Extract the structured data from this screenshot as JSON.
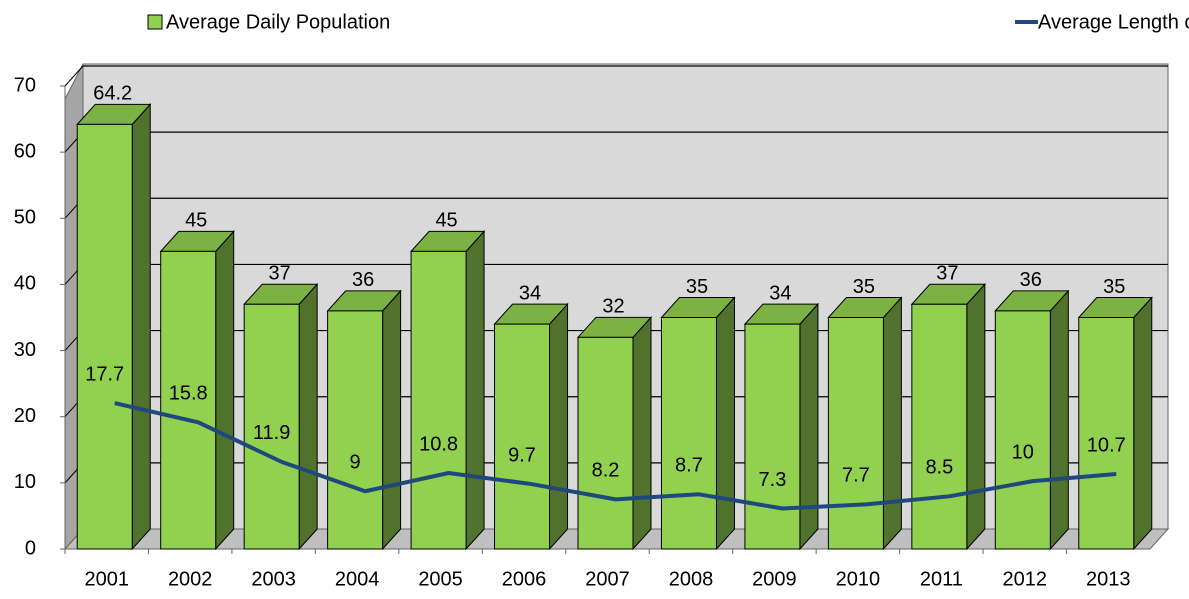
{
  "chart_data": {
    "type": "bar",
    "categories": [
      "2001",
      "2002",
      "2003",
      "2004",
      "2005",
      "2006",
      "2007",
      "2008",
      "2009",
      "2010",
      "2011",
      "2012",
      "2013"
    ],
    "series": [
      {
        "name": "Average Daily Population",
        "type": "bar",
        "color": "#92d050",
        "values": [
          64.2,
          45,
          37,
          36,
          45,
          34,
          32,
          35,
          34,
          35,
          37,
          36,
          35
        ]
      },
      {
        "name": "Average Length of Stay",
        "type": "line",
        "color": "#1f497d",
        "axis": "y2",
        "values": [
          17.7,
          15.8,
          11.9,
          9,
          10.8,
          9.7,
          8.2,
          8.7,
          7.3,
          7.7,
          8.5,
          10,
          10.7
        ]
      }
    ],
    "ylim": [
      0,
      70
    ],
    "yticks": [
      0,
      10,
      20,
      30,
      40,
      50,
      60,
      70
    ],
    "y2lim": [
      3.3,
      49
    ],
    "grid": true,
    "legend": "top"
  }
}
